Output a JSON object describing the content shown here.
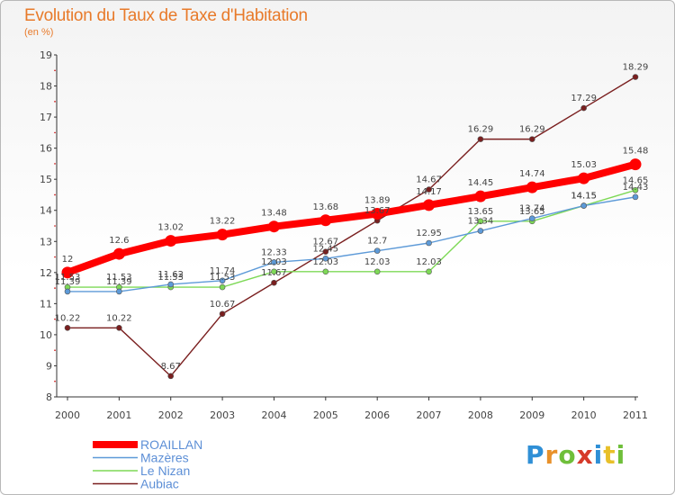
{
  "header": {
    "title": "Evolution du Taux de Taxe d'Habitation",
    "subtitle": "(en %)"
  },
  "logo": {
    "text": "Proxiti",
    "letter_colors": [
      "#2f8fd6",
      "#e8912a",
      "#6fbf3a",
      "#d63a2a",
      "#2f8fd6",
      "#e8c02a",
      "#6fbf3a"
    ]
  },
  "chart_data": {
    "type": "line",
    "x": [
      "2000",
      "2001",
      "2002",
      "2003",
      "2004",
      "2005",
      "2006",
      "2007",
      "2008",
      "2009",
      "2010",
      "2011"
    ],
    "ylim": [
      8,
      19
    ],
    "yticks": [
      "8",
      "9",
      "10",
      "11",
      "12",
      "13",
      "14",
      "15",
      "16",
      "17",
      "18",
      "19"
    ],
    "grid": false,
    "legend": "bottom-left",
    "series": [
      {
        "name": "ROAILLAN",
        "color": "#ff0000",
        "values": [
          12,
          12.6,
          13.02,
          13.22,
          13.48,
          13.68,
          13.89,
          14.17,
          14.45,
          14.74,
          15.03,
          15.48
        ],
        "labels": [
          "12",
          "12.6",
          "13.02",
          "13.22",
          "13.48",
          "13.68",
          "13.89",
          "14.17",
          "14.45",
          "14.74",
          "15.03",
          "15.48"
        ]
      },
      {
        "name": "Mazères",
        "color": "#5d9ad8",
        "values": [
          11.39,
          11.39,
          11.62,
          11.74,
          12.33,
          12.45,
          12.7,
          12.95,
          13.34,
          13.74,
          14.15,
          14.43
        ],
        "labels": [
          "11.39",
          "11.39",
          "11.62",
          "11.74",
          "12.33",
          "12.45",
          "12.7",
          "12.95",
          "13.34",
          "13.74",
          "14.15",
          "14.43"
        ]
      },
      {
        "name": "Le Nizan",
        "color": "#7ed957",
        "values": [
          11.53,
          11.53,
          11.53,
          11.53,
          12.03,
          12.03,
          12.03,
          12.03,
          13.65,
          13.65,
          14.15,
          14.65
        ],
        "labels": [
          "11.53",
          "11.53",
          "11.53",
          "11.53",
          "12.03",
          "12.03",
          "12.03",
          "12.03",
          "13.65",
          "13.65",
          "14.15",
          "14.65"
        ]
      },
      {
        "name": "Aubiac",
        "color": "#7a1f1f",
        "values": [
          10.22,
          10.22,
          8.67,
          10.67,
          11.67,
          12.67,
          13.67,
          14.67,
          16.29,
          16.29,
          17.29,
          18.29
        ],
        "labels": [
          "10.22",
          "10.22",
          "8.67",
          "10.67",
          "11.67",
          "12.67",
          "13.67",
          "14.67",
          "16.29",
          "16.29",
          "17.29",
          "18.29"
        ]
      }
    ]
  }
}
